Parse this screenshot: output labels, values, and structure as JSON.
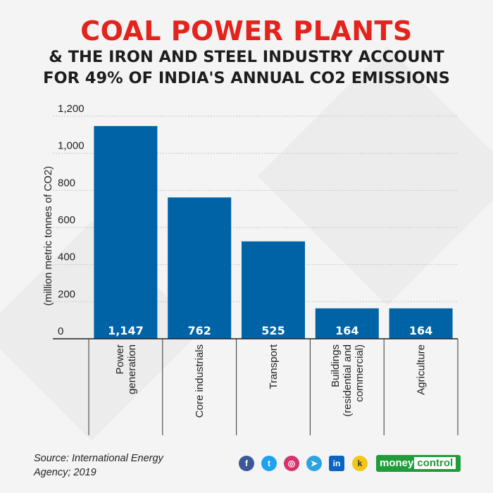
{
  "title": "COAL POWER PLANTS",
  "subtitle_line1": "& THE IRON AND STEEL INDUSTRY ACCOUNT",
  "subtitle_line2": "FOR 49% OF INDIA'S ANNUAL CO2 EMISSIONS",
  "source_line1": "Source: International Energy",
  "source_line2": "Agency; 2019",
  "brand": {
    "part1": "money",
    "part2": "control"
  },
  "social_icons": [
    "facebook-icon",
    "twitter-icon",
    "instagram-icon",
    "telegram-icon",
    "linkedin-icon",
    "koo-icon"
  ],
  "colors": {
    "bar": "#0063a5",
    "title": "#e4231c",
    "brand": "#1f9d3a"
  },
  "chart_data": {
    "type": "bar",
    "categories": [
      [
        "Power",
        "generation"
      ],
      [
        "Core industrials"
      ],
      [
        "Transport"
      ],
      [
        "Buildings",
        "(residential and",
        "commercial)"
      ],
      [
        "Agriculture"
      ]
    ],
    "values": [
      1147,
      762,
      525,
      164,
      164
    ],
    "value_labels": [
      "1,147",
      "762",
      "525",
      "164",
      "164"
    ],
    "ylabel": "(million metric tonnes of CO2)",
    "ylim": [
      0,
      1200
    ],
    "yticks": [
      0,
      200,
      400,
      600,
      800,
      1000,
      1200
    ],
    "ytick_labels": [
      "0",
      "200",
      "400",
      "600",
      "800",
      "1,000",
      "1,200"
    ],
    "grid": true
  }
}
